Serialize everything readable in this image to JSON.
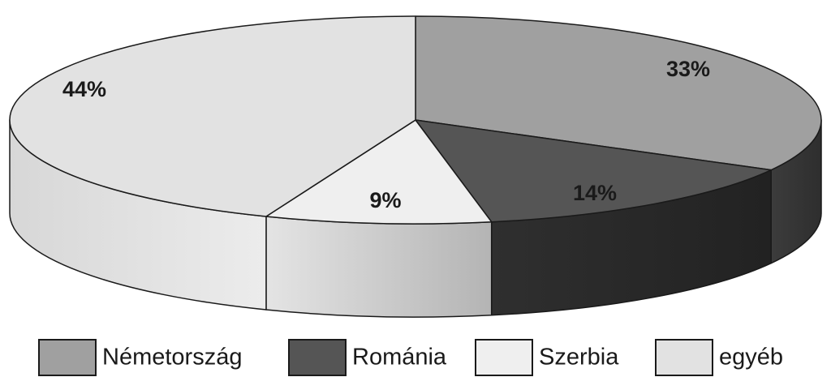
{
  "chart_data": {
    "type": "pie",
    "style": "3d",
    "categories": [
      "Németország",
      "Románia",
      "Szerbia",
      "egyéb"
    ],
    "values": [
      33,
      14,
      9,
      44
    ],
    "labels": [
      "33%",
      "14%",
      "9%",
      "44%"
    ],
    "colors": [
      "#a0a0a0",
      "#555555",
      "#efefef",
      "#e2e2e2"
    ],
    "legend": "bottom"
  }
}
